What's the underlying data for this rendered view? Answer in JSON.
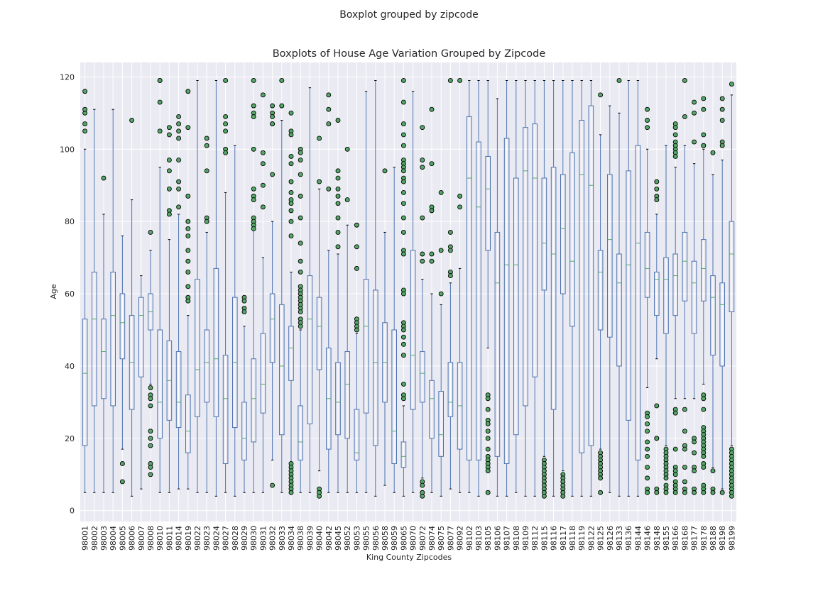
{
  "suptitle": "Boxplot grouped by zipcode",
  "chart_data": {
    "type": "box",
    "title": "Boxplots of House Age Variation Grouped by Zipcode",
    "xlabel": "King County Zipcodes",
    "ylabel": "Age",
    "ylim": [
      -3,
      124
    ],
    "yticks": [
      0,
      20,
      40,
      60,
      80,
      100,
      120
    ],
    "grid": true,
    "colors": {
      "background": "#eaeaf2",
      "grid": "#ffffff",
      "box": "#4c72b0",
      "median": "#55a868",
      "flier": "#55a868",
      "flier_edge": "#000000",
      "cap": "#000000"
    },
    "categories": [
      "98001",
      "98002",
      "98003",
      "98004",
      "98005",
      "98006",
      "98007",
      "98008",
      "98010",
      "98011",
      "98014",
      "98019",
      "98022",
      "98023",
      "98024",
      "98027",
      "98028",
      "98029",
      "98030",
      "98031",
      "98032",
      "98033",
      "98034",
      "98038",
      "98039",
      "98040",
      "98042",
      "98045",
      "98052",
      "98053",
      "98055",
      "98056",
      "98058",
      "98059",
      "98065",
      "98070",
      "98072",
      "98074",
      "98075",
      "98077",
      "98092",
      "98102",
      "98103",
      "98105",
      "98106",
      "98107",
      "98108",
      "98109",
      "98112",
      "98115",
      "98116",
      "98117",
      "98118",
      "98119",
      "98122",
      "98125",
      "98126",
      "98133",
      "98136",
      "98144",
      "98146",
      "98148",
      "98155",
      "98166",
      "98168",
      "98177",
      "98178",
      "98188",
      "98198",
      "98199"
    ],
    "boxes": [
      {
        "min": 5,
        "q1": 18,
        "median": 38,
        "q3": 53,
        "max": 100,
        "fliers": [
          107,
          105,
          110,
          111,
          116
        ]
      },
      {
        "min": 5,
        "q1": 29,
        "median": 53,
        "q3": 66,
        "max": 111,
        "fliers": []
      },
      {
        "min": 5,
        "q1": 31,
        "median": 44,
        "q3": 53,
        "max": 82,
        "fliers": [
          92
        ]
      },
      {
        "min": 5,
        "q1": 29,
        "median": 54,
        "q3": 66,
        "max": 111,
        "fliers": []
      },
      {
        "min": 17,
        "q1": 42,
        "median": 52,
        "q3": 60,
        "max": 76,
        "fliers": [
          13,
          8
        ]
      },
      {
        "min": 4,
        "q1": 28,
        "median": 41,
        "q3": 54,
        "max": 86,
        "fliers": [
          108
        ]
      },
      {
        "min": 6,
        "q1": 37,
        "median": 54,
        "q3": 59,
        "max": 65,
        "fliers": []
      },
      {
        "min": 35,
        "q1": 50,
        "median": 55,
        "q3": 60,
        "max": 72,
        "fliers": [
          77,
          34,
          32,
          31,
          29,
          22,
          20,
          18,
          13,
          12,
          10
        ]
      },
      {
        "min": 5,
        "q1": 20,
        "median": 30,
        "q3": 50,
        "max": 95,
        "fliers": [
          105,
          113,
          119,
          119
        ]
      },
      {
        "min": 5,
        "q1": 25,
        "median": 36,
        "q3": 47,
        "max": 75,
        "fliers": [
          106,
          104,
          97,
          94,
          89,
          83,
          82
        ]
      },
      {
        "min": 6,
        "q1": 23,
        "median": 30,
        "q3": 44,
        "max": 82,
        "fliers": [
          109,
          107,
          105,
          103,
          97,
          91,
          89,
          84
        ]
      },
      {
        "min": 6,
        "q1": 16,
        "median": 22,
        "q3": 32,
        "max": 54,
        "fliers": [
          116,
          106,
          87,
          80,
          78,
          76,
          72,
          69,
          66,
          62,
          59,
          58
        ]
      },
      {
        "min": 5,
        "q1": 26,
        "median": 39,
        "q3": 64,
        "max": 119,
        "fliers": []
      },
      {
        "min": 5,
        "q1": 30,
        "median": 41,
        "q3": 50,
        "max": 77,
        "fliers": [
          103,
          101,
          94,
          81,
          80
        ]
      },
      {
        "min": 4,
        "q1": 26,
        "median": 42,
        "q3": 67,
        "max": 119,
        "fliers": []
      },
      {
        "min": 5,
        "q1": 13,
        "median": 31,
        "q3": 43,
        "max": 88,
        "fliers": [
          119,
          109,
          107,
          105,
          100,
          99
        ]
      },
      {
        "min": 4,
        "q1": 23,
        "median": 41,
        "q3": 59,
        "max": 101,
        "fliers": []
      },
      {
        "min": 5,
        "q1": 14,
        "median": 20,
        "q3": 30,
        "max": 51,
        "fliers": [
          59,
          58,
          56,
          55
        ]
      },
      {
        "min": 5,
        "q1": 19,
        "median": 31,
        "q3": 42,
        "max": 78,
        "fliers": [
          119,
          112,
          110,
          109,
          100,
          89,
          87,
          86,
          81,
          80,
          79,
          78
        ]
      },
      {
        "min": 5,
        "q1": 27,
        "median": 35,
        "q3": 49,
        "max": 70,
        "fliers": [
          115,
          99,
          96,
          90,
          84
        ]
      },
      {
        "min": 14,
        "q1": 41,
        "median": 53,
        "q3": 60,
        "max": 80,
        "fliers": [
          112,
          110,
          109,
          107,
          107,
          93,
          7
        ]
      },
      {
        "min": 5,
        "q1": 21,
        "median": 40,
        "q3": 57,
        "max": 108,
        "fliers": [
          119,
          112
        ]
      },
      {
        "min": 5,
        "q1": 36,
        "median": 45,
        "q3": 51,
        "max": 66,
        "fliers": [
          110,
          105,
          104,
          98,
          96,
          91,
          88,
          86,
          85,
          83,
          80,
          76,
          13,
          12,
          11,
          10,
          9,
          8,
          7,
          6,
          5
        ]
      },
      {
        "min": 5,
        "q1": 14,
        "median": 19,
        "q3": 29,
        "max": 50,
        "fliers": [
          100,
          99,
          97,
          93,
          87,
          81,
          74,
          69,
          66,
          62,
          61,
          60,
          59,
          58,
          57,
          56,
          55,
          53,
          52,
          51
        ]
      },
      {
        "min": 5,
        "q1": 24,
        "median": 53,
        "q3": 65,
        "max": 117,
        "fliers": []
      },
      {
        "min": 11,
        "q1": 39,
        "median": 51,
        "q3": 59,
        "max": 89,
        "fliers": [
          103,
          91,
          6,
          5,
          4
        ]
      },
      {
        "min": 5,
        "q1": 17,
        "median": 31,
        "q3": 45,
        "max": 72,
        "fliers": [
          115,
          111,
          107,
          89
        ]
      },
      {
        "min": 5,
        "q1": 21,
        "median": 30,
        "q3": 41,
        "max": 71,
        "fliers": [
          108,
          94,
          92,
          89,
          87,
          85,
          81,
          77,
          73
        ]
      },
      {
        "min": 5,
        "q1": 20,
        "median": 35,
        "q3": 44,
        "max": 79,
        "fliers": [
          100,
          86
        ]
      },
      {
        "min": 5,
        "q1": 14,
        "median": 16,
        "q3": 28,
        "max": 49,
        "fliers": [
          79,
          73,
          67,
          53,
          52,
          51,
          50
        ]
      },
      {
        "min": 5,
        "q1": 27,
        "median": 51,
        "q3": 64,
        "max": 116,
        "fliers": []
      },
      {
        "min": 4,
        "q1": 18,
        "median": 41,
        "q3": 61,
        "max": 119,
        "fliers": []
      },
      {
        "min": 7,
        "q1": 30,
        "median": 41,
        "q3": 52,
        "max": 77,
        "fliers": [
          94
        ]
      },
      {
        "min": 5,
        "q1": 13,
        "median": 22,
        "q3": 50,
        "max": 95,
        "fliers": []
      },
      {
        "min": 4,
        "q1": 12,
        "median": 15,
        "q3": 19,
        "max": 29,
        "fliers": [
          119,
          113,
          107,
          104,
          101,
          97,
          96,
          95,
          94,
          92,
          91,
          88,
          85,
          81,
          77,
          72,
          71,
          61,
          60,
          52,
          51,
          50,
          48,
          46,
          43,
          35,
          32,
          31
        ]
      },
      {
        "min": 5,
        "q1": 28,
        "median": 43,
        "q3": 72,
        "max": 116,
        "fliers": []
      },
      {
        "min": 9,
        "q1": 30,
        "median": 38,
        "q3": 44,
        "max": 64,
        "fliers": [
          106,
          97,
          95,
          81,
          71,
          69,
          8,
          7,
          5,
          4
        ]
      },
      {
        "min": 5,
        "q1": 20,
        "median": 31,
        "q3": 36,
        "max": 60,
        "fliers": [
          111,
          96,
          84,
          83,
          71,
          69
        ]
      },
      {
        "min": 4,
        "q1": 15,
        "median": 21,
        "q3": 33,
        "max": 57,
        "fliers": [
          88,
          72,
          60
        ]
      },
      {
        "min": 6,
        "q1": 26,
        "median": 30,
        "q3": 41,
        "max": 63,
        "fliers": [
          119,
          77,
          73,
          72,
          66,
          65
        ]
      },
      {
        "min": 5,
        "q1": 17,
        "median": 29,
        "q3": 41,
        "max": 67,
        "fliers": [
          119,
          87,
          84
        ]
      },
      {
        "min": 5,
        "q1": 14,
        "median": 92,
        "q3": 109,
        "max": 119,
        "fliers": []
      },
      {
        "min": 4,
        "q1": 14,
        "median": 84,
        "q3": 102,
        "max": 119,
        "fliers": []
      },
      {
        "min": 45,
        "q1": 72,
        "median": 89,
        "q3": 98,
        "max": 119,
        "fliers": [
          32,
          31,
          28,
          25,
          24,
          22,
          20,
          17,
          15,
          14,
          13,
          12,
          11,
          5
        ]
      },
      {
        "min": 4,
        "q1": 15,
        "median": 63,
        "q3": 77,
        "max": 114,
        "fliers": []
      },
      {
        "min": 4,
        "q1": 13,
        "median": 68,
        "q3": 103,
        "max": 119,
        "fliers": []
      },
      {
        "min": 5,
        "q1": 21,
        "median": 68,
        "q3": 92,
        "max": 119,
        "fliers": []
      },
      {
        "min": 4,
        "q1": 29,
        "median": 94,
        "q3": 106,
        "max": 119,
        "fliers": []
      },
      {
        "min": 4,
        "q1": 37,
        "median": 92,
        "q3": 107,
        "max": 119,
        "fliers": []
      },
      {
        "min": 15,
        "q1": 61,
        "median": 74,
        "q3": 92,
        "max": 119,
        "fliers": [
          14,
          13,
          12,
          11,
          10,
          9,
          8,
          7,
          6,
          5,
          4
        ]
      },
      {
        "min": 4,
        "q1": 28,
        "median": 71,
        "q3": 95,
        "max": 119,
        "fliers": []
      },
      {
        "min": 11,
        "q1": 60,
        "median": 78,
        "q3": 93,
        "max": 119,
        "fliers": [
          10,
          9,
          8,
          7,
          6,
          5,
          4
        ]
      },
      {
        "min": 4,
        "q1": 51,
        "median": 69,
        "q3": 99,
        "max": 119,
        "fliers": []
      },
      {
        "min": 4,
        "q1": 16,
        "median": 93,
        "q3": 108,
        "max": 119,
        "fliers": []
      },
      {
        "min": 4,
        "q1": 18,
        "median": 90,
        "q3": 112,
        "max": 119,
        "fliers": []
      },
      {
        "min": 17,
        "q1": 50,
        "median": 66,
        "q3": 72,
        "max": 104,
        "fliers": [
          115,
          16,
          15,
          14,
          13,
          12,
          11,
          10,
          9,
          5
        ]
      },
      {
        "min": 5,
        "q1": 48,
        "median": 75,
        "q3": 93,
        "max": 112,
        "fliers": []
      },
      {
        "min": 4,
        "q1": 40,
        "median": 63,
        "q3": 71,
        "max": 110,
        "fliers": [
          119
        ]
      },
      {
        "min": 4,
        "q1": 25,
        "median": 68,
        "q3": 94,
        "max": 119,
        "fliers": []
      },
      {
        "min": 4,
        "q1": 14,
        "median": 74,
        "q3": 101,
        "max": 119,
        "fliers": []
      },
      {
        "min": 34,
        "q1": 59,
        "median": 67,
        "q3": 77,
        "max": 100,
        "fliers": [
          111,
          108,
          106,
          27,
          26,
          24,
          22,
          19,
          17,
          15,
          12,
          9,
          6,
          5
        ]
      },
      {
        "min": 42,
        "q1": 54,
        "median": 64,
        "q3": 66,
        "max": 82,
        "fliers": [
          91,
          89,
          87,
          86,
          29,
          20,
          20,
          6,
          5
        ]
      },
      {
        "min": 18,
        "q1": 49,
        "median": 64,
        "q3": 70,
        "max": 101,
        "fliers": [
          17,
          16,
          15,
          14,
          13,
          12,
          11,
          10,
          9,
          7,
          6,
          5
        ]
      },
      {
        "min": 31,
        "q1": 54,
        "median": 65,
        "q3": 71,
        "max": 95,
        "fliers": [
          107,
          106,
          104,
          102,
          101,
          100,
          99,
          98,
          28,
          27,
          17,
          12,
          11,
          10,
          8,
          7,
          6,
          5
        ]
      },
      {
        "min": 31,
        "q1": 58,
        "median": 69,
        "q3": 77,
        "max": 101,
        "fliers": [
          119,
          109,
          28,
          22,
          18,
          17,
          12,
          8,
          6,
          5
        ]
      },
      {
        "min": 31,
        "q1": 49,
        "median": 63,
        "q3": 69,
        "max": 96,
        "fliers": [
          113,
          110,
          102,
          20,
          19,
          16,
          12,
          11,
          6,
          5
        ]
      },
      {
        "min": 35,
        "q1": 58,
        "median": 67,
        "q3": 75,
        "max": 100,
        "fliers": [
          114,
          111,
          104,
          101,
          101,
          32,
          31,
          28,
          23,
          22,
          21,
          20,
          19,
          18,
          17,
          16,
          15,
          13,
          12,
          7,
          6,
          5
        ]
      },
      {
        "min": 12,
        "q1": 43,
        "median": 59,
        "q3": 65,
        "max": 93,
        "fliers": [
          99,
          11,
          6,
          5
        ]
      },
      {
        "min": 6,
        "q1": 40,
        "median": 57,
        "q3": 63,
        "max": 97,
        "fliers": [
          114,
          111,
          108,
          102,
          101,
          5
        ]
      },
      {
        "min": 18,
        "q1": 55,
        "median": 71,
        "q3": 80,
        "max": 115,
        "fliers": [
          118,
          17,
          16,
          15,
          14,
          13,
          12,
          11,
          10,
          9,
          8,
          7,
          6,
          5,
          4
        ]
      }
    ]
  }
}
